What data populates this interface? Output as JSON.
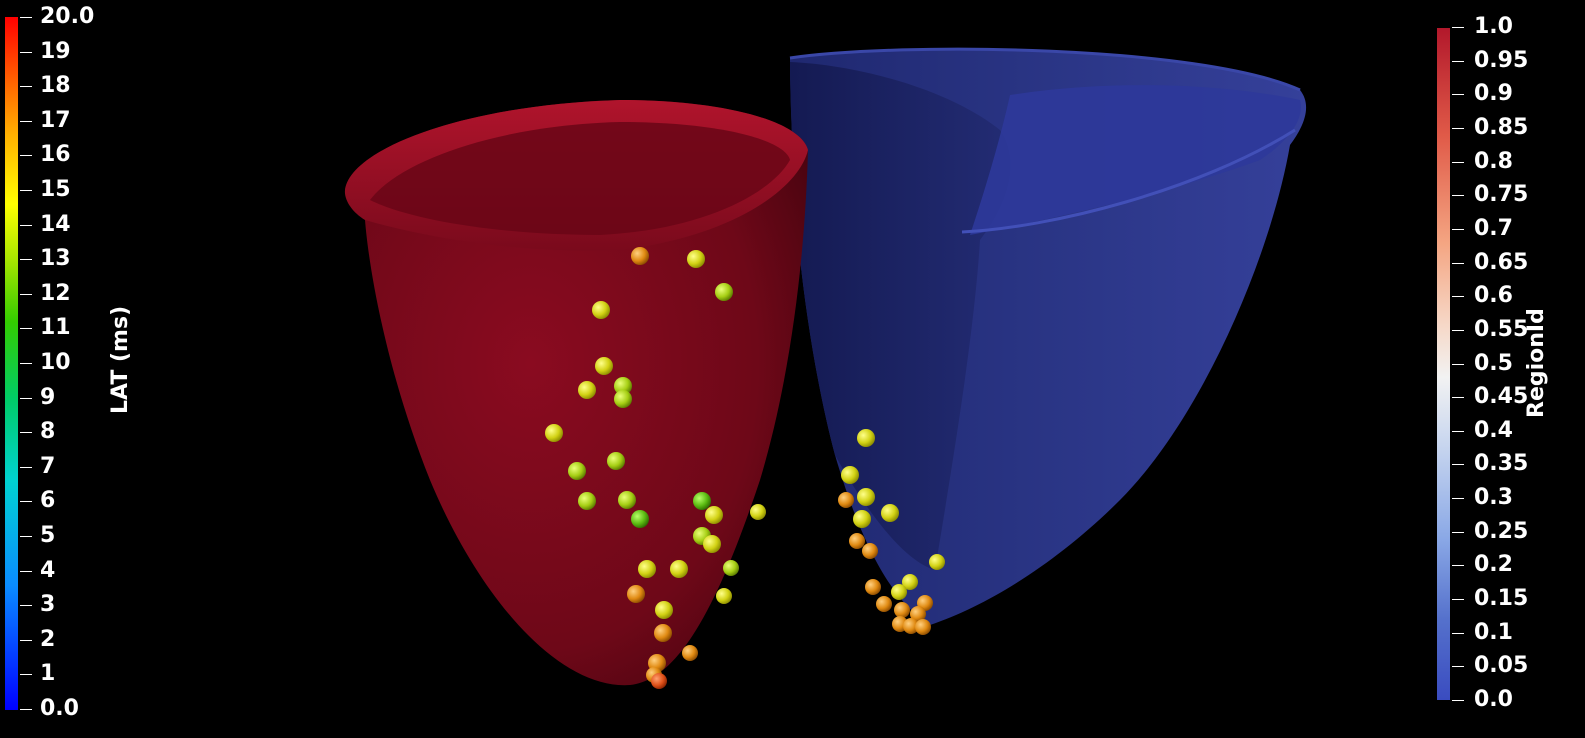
{
  "lat_colorbar": {
    "title": "LAT (ms)",
    "labels": [
      "20.0",
      "19",
      "18",
      "17",
      "16",
      "15",
      "14",
      "13",
      "12",
      "11",
      "10",
      "9",
      "8",
      "7",
      "6",
      "5",
      "4",
      "3",
      "2",
      "1",
      "0.0"
    ]
  },
  "region_colorbar": {
    "title": "RegionId",
    "labels": [
      "1.0",
      "0.95",
      "0.9",
      "0.85",
      "0.8",
      "0.75",
      "0.7",
      "0.65",
      "0.6",
      "0.55",
      "0.5",
      "0.45",
      "0.4",
      "0.35",
      "0.3",
      "0.25",
      "0.2",
      "0.15",
      "0.1",
      "0.05",
      "0.0"
    ]
  },
  "colors": {
    "left_ventricle": "#7a0a1c",
    "right_ventricle": "#2a3585",
    "marker_yellow": "#d6d61a",
    "marker_green": "#5fbf10",
    "marker_orange": "#e28a12",
    "marker_red_orange": "#e2521a"
  }
}
